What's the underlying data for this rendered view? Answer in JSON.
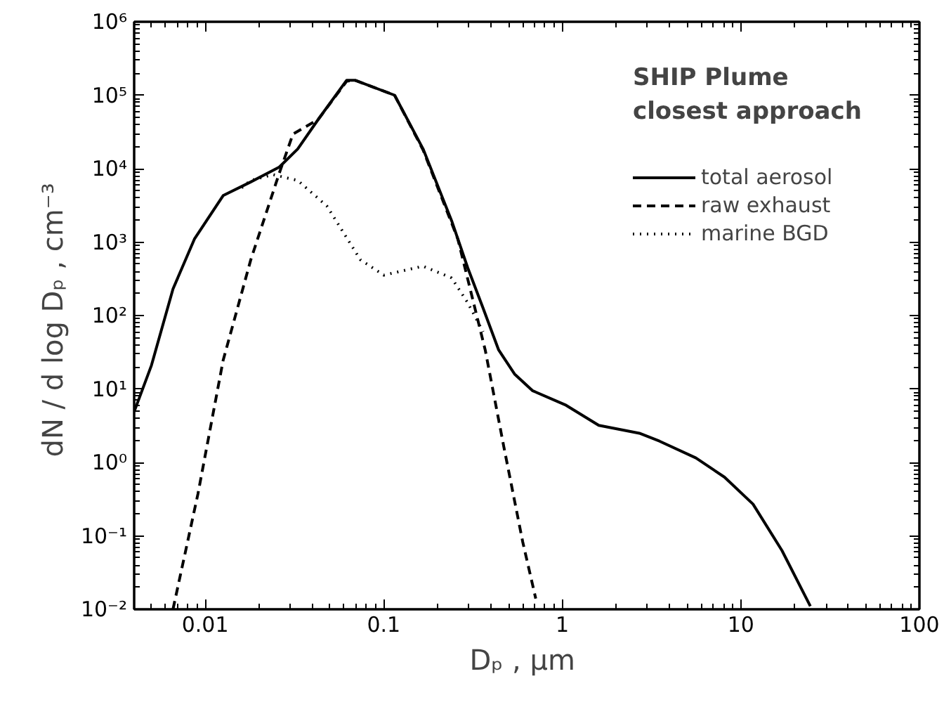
{
  "chart_data": {
    "type": "line",
    "xlabel": "Dₚ ,  µm",
    "ylabel": "dN / d log Dₚ ,  cm⁻³",
    "legend_title": "SHIP Plume\nclosest approach",
    "legend": "top right",
    "grid": false,
    "log": "xy",
    "xlim": [
      0.004,
      100
    ],
    "ylim": [
      0.01,
      1000000
    ],
    "xticks": [
      0.01,
      0.1,
      1,
      10,
      100
    ],
    "yticks": [
      {
        "value": 0.01,
        "label": "10⁻²"
      },
      {
        "value": 0.1,
        "label": "10⁻¹"
      },
      {
        "value": 1,
        "label": "10⁰"
      },
      {
        "value": 10,
        "label": "10¹"
      },
      {
        "value": 100,
        "label": "10²"
      },
      {
        "value": 1000,
        "label": "10³"
      },
      {
        "value": 10000,
        "label": "10⁴"
      },
      {
        "value": 100000,
        "label": "10⁵"
      },
      {
        "value": 1000000,
        "label": "10⁶"
      }
    ],
    "series": [
      {
        "name": "total aerosol",
        "color": "#000000",
        "line_style": "solid",
        "x": [
          0.004,
          0.005,
          0.0066,
          0.0087,
          0.0126,
          0.018,
          0.026,
          0.033,
          0.043,
          0.062,
          0.069,
          0.115,
          0.166,
          0.24,
          0.295,
          0.36,
          0.44,
          0.54,
          0.68,
          1.05,
          1.6,
          2.7,
          3.5,
          5.6,
          8.1,
          11.7,
          17,
          24.5
        ],
        "values": [
          4.9,
          21,
          230,
          1100,
          4300,
          6600,
          10500,
          18600,
          47000,
          160000,
          160000,
          100000,
          18600,
          1950,
          450,
          126,
          34,
          16,
          9.5,
          6,
          3.2,
          2.5,
          1.95,
          1.15,
          0.63,
          0.27,
          0.063,
          0.011
        ]
      },
      {
        "name": "raw exhaust",
        "color": "#000000",
        "line_style": "dashed",
        "x": [
          0.0066,
          0.0091,
          0.0126,
          0.018,
          0.026,
          0.031,
          0.043,
          0.062,
          0.069,
          0.115,
          0.166,
          0.26,
          0.37,
          0.47,
          0.6,
          0.71
        ],
        "values": [
          0.01,
          0.37,
          24.5,
          575,
          8700,
          29500,
          47000,
          155000,
          160000,
          100000,
          18000,
          1100,
          34,
          1.65,
          0.083,
          0.014
        ]
      },
      {
        "name": "marine BGD",
        "color": "#000000",
        "line_style": "dotted",
        "x": [
          0.016,
          0.018,
          0.024,
          0.033,
          0.048,
          0.074,
          0.1,
          0.166,
          0.24,
          0.295,
          0.36
        ],
        "values": [
          5500,
          6900,
          8300,
          6900,
          3100,
          575,
          355,
          470,
          325,
          150,
          60
        ]
      }
    ]
  }
}
